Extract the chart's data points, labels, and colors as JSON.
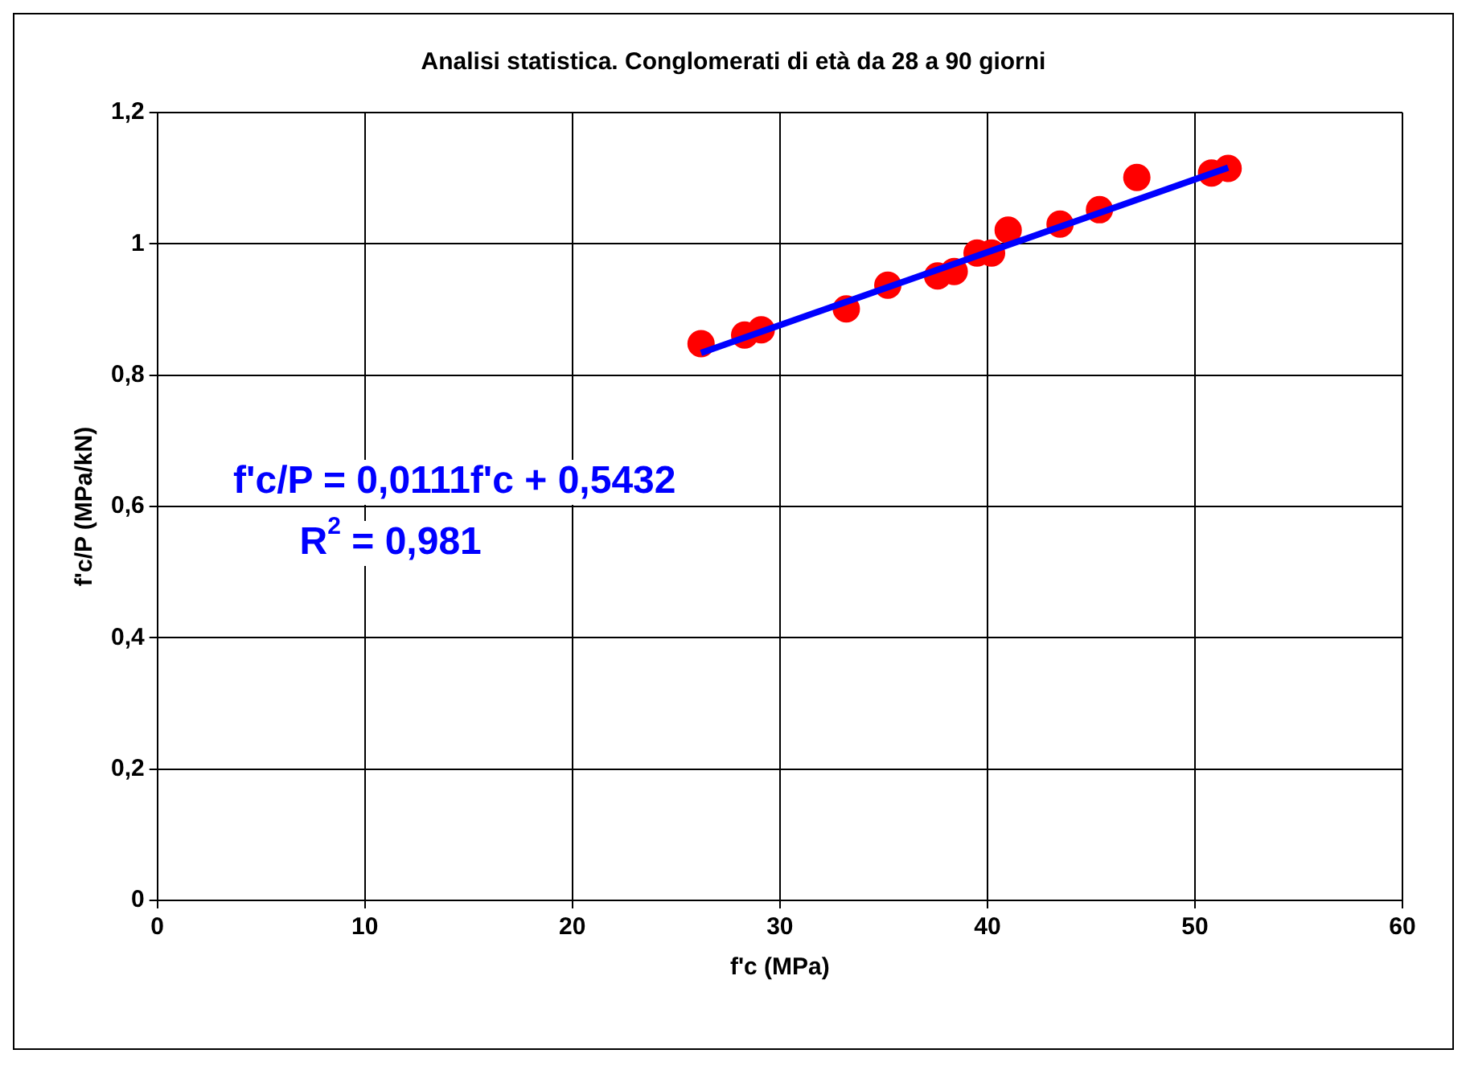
{
  "chart_data": {
    "type": "scatter",
    "title": "Analisi statistica. Conglomerati di età da 28 a 90 giorni",
    "xlabel": "f'c (MPa)",
    "ylabel": "f'c/P (MPa/kN)",
    "xlim": [
      0,
      60
    ],
    "xticks": [
      0,
      10,
      20,
      30,
      40,
      50,
      60
    ],
    "ylim": [
      0,
      1.2
    ],
    "yticks": [
      0,
      {
        "value": 0.2,
        "label": "0,2"
      },
      {
        "value": 0.4,
        "label": "0,4"
      },
      {
        "value": 0.6,
        "label": "0,6"
      },
      {
        "value": 0.8,
        "label": "0,8"
      },
      1,
      {
        "value": 1.2,
        "label": "1,2"
      }
    ],
    "grid": true,
    "legend": false,
    "marker": "circle",
    "series": [
      {
        "color": "#ff0000",
        "x": [
          26.2,
          28.3,
          29.1,
          33.2,
          35.2,
          37.6,
          38.4,
          39.5,
          40.2,
          41.0,
          43.5,
          45.4,
          47.2,
          50.8,
          51.6
        ],
        "values": [
          0.848,
          0.861,
          0.869,
          0.901,
          0.937,
          0.951,
          0.958,
          0.986,
          0.986,
          1.021,
          1.03,
          1.052,
          1.101,
          1.108,
          1.115
        ]
      },
      {
        "type": "line",
        "marker": "none",
        "color": "#0000ff",
        "x": [
          26.2,
          51.6
        ],
        "values": [
          0.834,
          1.116
        ]
      }
    ],
    "annotations": [
      "f'c/P = 0,0111f'c + 0,5432",
      "R$^{2}$ = 0,981"
    ]
  }
}
